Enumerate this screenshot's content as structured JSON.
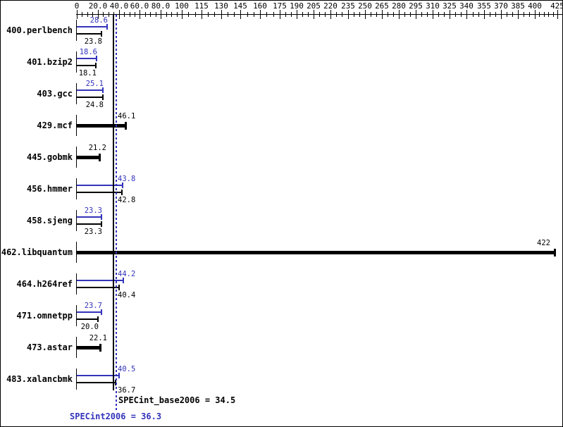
{
  "chart_data": {
    "type": "bar",
    "orientation": "horizontal",
    "title": "",
    "colors": {
      "peak": "#3333bb",
      "base": "#000000"
    },
    "axis": {
      "minor_step": 5,
      "max_value": 425,
      "ticks": [
        {
          "v": 0,
          "label": "0"
        },
        {
          "v": 20,
          "label": "20.0"
        },
        {
          "v": 40,
          "label": "40.0"
        },
        {
          "v": 60,
          "label": "60.0"
        },
        {
          "v": 80,
          "label": "80.0"
        },
        {
          "v": 100,
          "label": "100"
        },
        {
          "v": 115,
          "label": "115"
        },
        {
          "v": 130,
          "label": "130"
        },
        {
          "v": 145,
          "label": "145"
        },
        {
          "v": 160,
          "label": "160"
        },
        {
          "v": 175,
          "label": "175"
        },
        {
          "v": 190,
          "label": "190"
        },
        {
          "v": 205,
          "label": "205"
        },
        {
          "v": 220,
          "label": "220"
        },
        {
          "v": 235,
          "label": "235"
        },
        {
          "v": 250,
          "label": "250"
        },
        {
          "v": 265,
          "label": "265"
        },
        {
          "v": 280,
          "label": "280"
        },
        {
          "v": 295,
          "label": "295"
        },
        {
          "v": 310,
          "label": "310"
        },
        {
          "v": 325,
          "label": "325"
        },
        {
          "v": 340,
          "label": "340"
        },
        {
          "v": 355,
          "label": "355"
        },
        {
          "v": 370,
          "label": "370"
        },
        {
          "v": 385,
          "label": "385"
        },
        {
          "v": 400,
          "label": "400"
        },
        {
          "v": 425,
          "label": "425"
        }
      ]
    },
    "benchmarks": [
      {
        "name": "400.perlbench",
        "peak": 28.6,
        "peak_label": "28.6",
        "base": 23.8,
        "base_label": "23.8"
      },
      {
        "name": "401.bzip2",
        "peak": 18.6,
        "peak_label": "18.6",
        "base": 18.1,
        "base_label": "18.1"
      },
      {
        "name": "403.gcc",
        "peak": 25.1,
        "peak_label": "25.1",
        "base": 24.8,
        "base_label": "24.8"
      },
      {
        "name": "429.mcf",
        "single": 46.1,
        "single_label": "46.1"
      },
      {
        "name": "445.gobmk",
        "single": 21.2,
        "single_label": "21.2"
      },
      {
        "name": "456.hmmer",
        "peak": 43.8,
        "peak_label": "43.8",
        "base": 42.8,
        "base_label": "42.8"
      },
      {
        "name": "458.sjeng",
        "peak": 23.3,
        "peak_label": "23.3",
        "base": 23.3,
        "base_label": "23.3"
      },
      {
        "name": "462.libquantum",
        "single": 422,
        "single_label": "422"
      },
      {
        "name": "464.h264ref",
        "peak": 44.2,
        "peak_label": "44.2",
        "base": 40.4,
        "base_label": "40.4"
      },
      {
        "name": "471.omnetpp",
        "peak": 23.7,
        "peak_label": "23.7",
        "base": 20.0,
        "base_label": "20.0"
      },
      {
        "name": "473.astar",
        "single": 22.1,
        "single_label": "22.1"
      },
      {
        "name": "483.xalancbmk",
        "peak": 40.5,
        "peak_label": "40.5",
        "base": 36.7,
        "base_label": "36.7"
      }
    ],
    "means": {
      "base_value": 34.5,
      "base_text": "SPECint_base2006 = 34.5",
      "peak_value": 36.3,
      "peak_text": "SPECint2006 = 36.3"
    }
  }
}
